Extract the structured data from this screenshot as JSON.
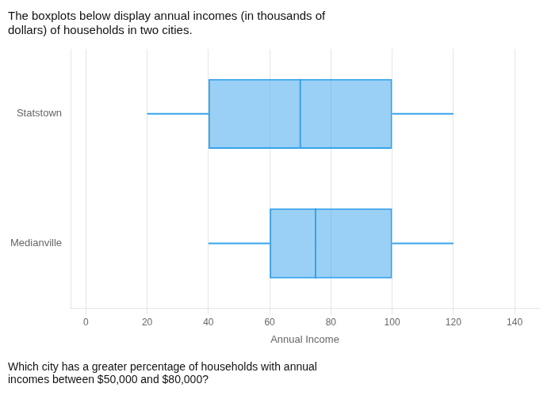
{
  "chart_data": {
    "type": "boxplot",
    "orientation": "horizontal",
    "title": "The boxplots below display annual incomes (in thousands of\ndollars) of households in two cities.",
    "annotations": [
      "Which city has a greater percentage of households with annual\nincomes between $50,000 and $80,000?"
    ],
    "categories": [
      "Statstown",
      "Medianville"
    ],
    "stats": [
      {
        "whisker_min": 20,
        "q1": 40,
        "median": 70,
        "q3": 100,
        "whisker_max": 120
      },
      {
        "whisker_min": 40,
        "q1": 60,
        "median": 75,
        "q3": 100,
        "whisker_max": 120
      }
    ],
    "xlabel": "Annual Income",
    "xlim": [
      -5,
      148
    ],
    "xticks": [
      0,
      20,
      40,
      60,
      80,
      100,
      120,
      140
    ],
    "grid": "x",
    "legend": false
  }
}
